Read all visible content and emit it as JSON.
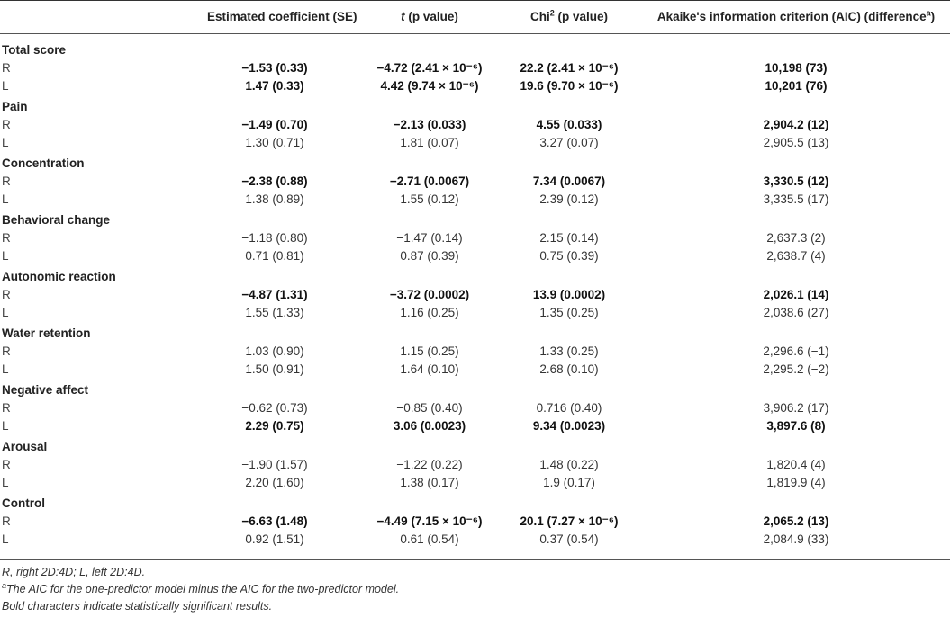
{
  "header": {
    "col1": "Estimated coefficient (SE)",
    "col2_italic": "t",
    "col2_rest": " (p value)",
    "col3_pre": "Chi",
    "col3_sup": "2",
    "col3_post": " (p value)",
    "col4": "Akaike's information criterion (AIC) (difference",
    "col4_sup": "a",
    "col4_close": ")"
  },
  "sections": [
    {
      "title": "Total score",
      "rows": [
        {
          "label": "R",
          "bold": true,
          "coef": "−1.53 (0.33)",
          "t": "−4.72 (2.41 × 10⁻⁶)",
          "chi": "22.2 (2.41 × 10⁻⁶)",
          "aic": "10,198 (73)"
        },
        {
          "label": "L",
          "bold": true,
          "coef": "1.47 (0.33)",
          "t": "4.42 (9.74 × 10⁻⁶)",
          "chi": "19.6 (9.70 × 10⁻⁶)",
          "aic": "10,201 (76)"
        }
      ]
    },
    {
      "title": "Pain",
      "rows": [
        {
          "label": "R",
          "bold": true,
          "coef": "−1.49 (0.70)",
          "t": "−2.13 (0.033)",
          "chi": "4.55 (0.033)",
          "aic": "2,904.2 (12)"
        },
        {
          "label": "L",
          "bold": false,
          "coef": "1.30 (0.71)",
          "t": "1.81 (0.07)",
          "chi": "3.27 (0.07)",
          "aic": "2,905.5 (13)"
        }
      ]
    },
    {
      "title": "Concentration",
      "rows": [
        {
          "label": "R",
          "bold": true,
          "coef": "−2.38 (0.88)",
          "t": "−2.71 (0.0067)",
          "chi": "7.34 (0.0067)",
          "aic": "3,330.5 (12)"
        },
        {
          "label": "L",
          "bold": false,
          "coef": "1.38 (0.89)",
          "t": "1.55 (0.12)",
          "chi": "2.39 (0.12)",
          "aic": "3,335.5 (17)"
        }
      ]
    },
    {
      "title": "Behavioral change",
      "rows": [
        {
          "label": "R",
          "bold": false,
          "coef": "−1.18 (0.80)",
          "t": "−1.47 (0.14)",
          "chi": "2.15 (0.14)",
          "aic": "2,637.3 (2)"
        },
        {
          "label": "L",
          "bold": false,
          "coef": "0.71 (0.81)",
          "t": "0.87 (0.39)",
          "chi": "0.75 (0.39)",
          "aic": "2,638.7 (4)"
        }
      ]
    },
    {
      "title": "Autonomic reaction",
      "rows": [
        {
          "label": "R",
          "bold": true,
          "coef": "−4.87 (1.31)",
          "t": "−3.72 (0.0002)",
          "chi": "13.9 (0.0002)",
          "aic": "2,026.1 (14)"
        },
        {
          "label": "L",
          "bold": false,
          "coef": "1.55 (1.33)",
          "t": "1.16 (0.25)",
          "chi": "1.35 (0.25)",
          "aic": "2,038.6 (27)"
        }
      ]
    },
    {
      "title": "Water retention",
      "rows": [
        {
          "label": "R",
          "bold": false,
          "coef": "1.03 (0.90)",
          "t": "1.15 (0.25)",
          "chi": "1.33 (0.25)",
          "aic": "2,296.6 (−1)"
        },
        {
          "label": "L",
          "bold": false,
          "coef": "1.50 (0.91)",
          "t": "1.64 (0.10)",
          "chi": "2.68 (0.10)",
          "aic": "2,295.2 (−2)"
        }
      ]
    },
    {
      "title": "Negative affect",
      "rows": [
        {
          "label": "R",
          "bold": false,
          "coef": "−0.62 (0.73)",
          "t": "−0.85 (0.40)",
          "chi": "0.716 (0.40)",
          "aic": "3,906.2 (17)"
        },
        {
          "label": "L",
          "bold": true,
          "coef": "2.29 (0.75)",
          "t": "3.06 (0.0023)",
          "chi": "9.34 (0.0023)",
          "aic": "3,897.6 (8)"
        }
      ]
    },
    {
      "title": "Arousal",
      "rows": [
        {
          "label": "R",
          "bold": false,
          "coef": "−1.90 (1.57)",
          "t": "−1.22 (0.22)",
          "chi": "1.48 (0.22)",
          "aic": "1,820.4 (4)"
        },
        {
          "label": "L",
          "bold": false,
          "coef": "2.20 (1.60)",
          "t": "1.38 (0.17)",
          "chi": "1.9 (0.17)",
          "aic": "1,819.9 (4)"
        }
      ]
    },
    {
      "title": "Control",
      "rows": [
        {
          "label": "R",
          "bold": true,
          "coef": "−6.63 (1.48)",
          "t": "−4.49 (7.15 × 10⁻⁶)",
          "chi": "20.1 (7.27 × 10⁻⁶)",
          "aic": "2,065.2 (13)"
        },
        {
          "label": "L",
          "bold": false,
          "coef": "0.92 (1.51)",
          "t": "0.61 (0.54)",
          "chi": "0.37 (0.54)",
          "aic": "2,084.9 (33)"
        }
      ]
    }
  ],
  "footnotes": {
    "abbrev": "R, right 2D:4D; L, left 2D:4D.",
    "a_sup": "a",
    "a_text": "The AIC for the one-predictor model minus the AIC for the two-predictor model.",
    "bold_note": "Bold characters indicate statistically significant results."
  }
}
